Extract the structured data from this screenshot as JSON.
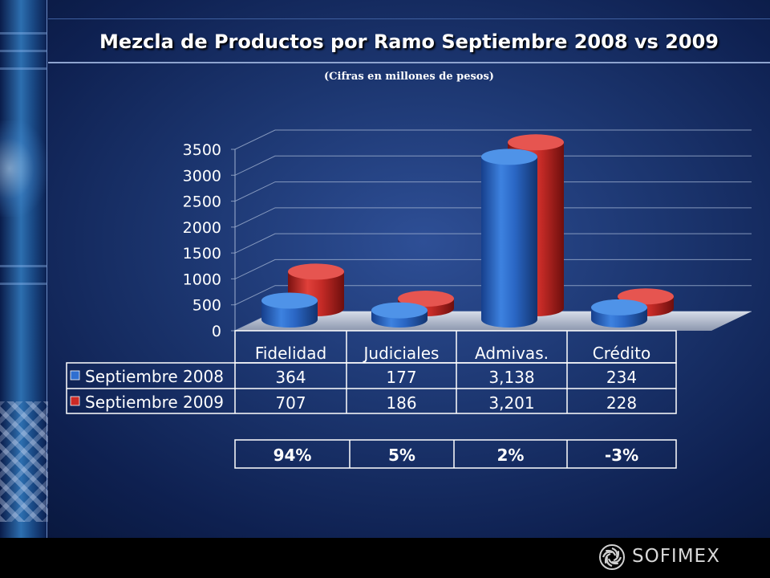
{
  "slide": {
    "title": "Mezcla de Productos por Ramo Septiembre 2008 vs 2009",
    "subtitle": "(Cifras en millones de pesos)"
  },
  "brand": {
    "name": "SOFIMEX"
  },
  "colors": {
    "series_2008": "#2f6fd0",
    "series_2009": "#cc2a26",
    "background": "#1c3670"
  },
  "chart_data": {
    "type": "bar",
    "style": "3d-cylinder",
    "categories": [
      "Fidelidad",
      "Judiciales",
      "Admivas.",
      "Crédito"
    ],
    "series": [
      {
        "name": "Septiembre 2008",
        "values": [
          364,
          177,
          3138,
          234
        ],
        "labels": [
          "364",
          "177",
          "3,138",
          "234"
        ]
      },
      {
        "name": "Septiembre 2009",
        "values": [
          707,
          186,
          3201,
          228
        ],
        "labels": [
          "707",
          "186",
          "3,201",
          "228"
        ]
      }
    ],
    "yticks": [
      "0",
      "500",
      "1000",
      "1500",
      "2000",
      "2500",
      "3000",
      "3500"
    ],
    "ylim": [
      0,
      3500
    ],
    "grid": true,
    "legend": "data-table",
    "growth": [
      "94%",
      "5%",
      "2%",
      "-3%"
    ]
  }
}
